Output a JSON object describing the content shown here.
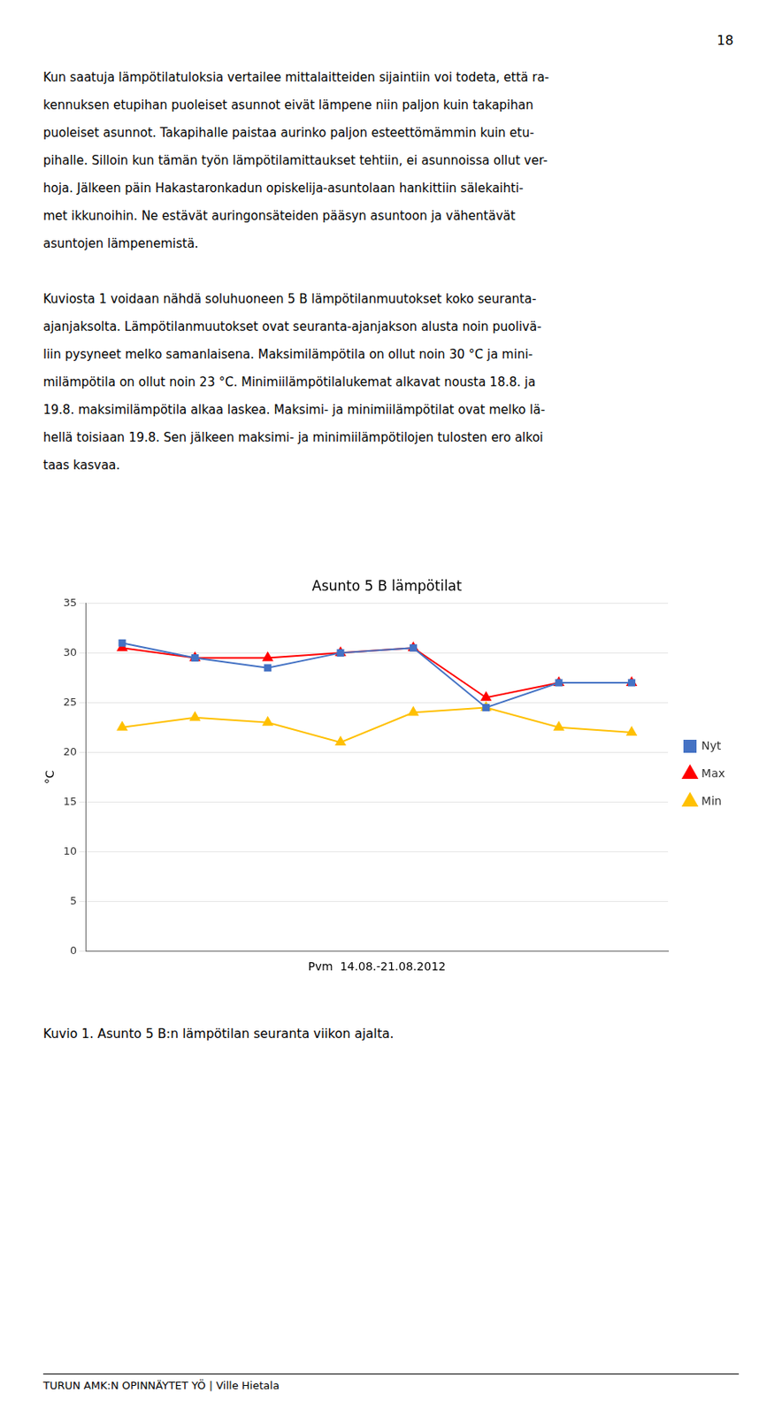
{
  "page_number": "18",
  "paragraphs": [
    [
      "Kun saatuja lämpötilatuloksia vertailee mittalaitteiden sijaintiin voi todeta, että ra-",
      "kennuksen etupihan puoleiset asunnot eivät lämpene niin paljon kuin takapihan",
      "puoleiset asunnot. Takapihalle paistaa aurinko paljon esteettömämmin kuin etu-",
      "pihalle. Silloin kun tämän työn lämpötilamittaukset tehtiin, ei asunnoissa ollut ver-",
      "hoja. Jälkeen päin Hakastaronkadun opiskelija-asuntolaan hankittiin sälekaihti-",
      "met ikkunoihin. Ne estävät auringonsäteiden pääsyn asuntoon ja vähentävät",
      "asuntojen lämpenemistä."
    ],
    [
      "Kuviosta 1 voidaan nähdä soluhuoneen 5 B lämpötilanmuutokset koko seuranta-",
      "ajanjaksolta. Lämpötilanmuutokset ovat seuranta-ajanjakson alusta noin puolivä-",
      "liin pysyneet melko samanlaisena. Maksimilämpötila on ollut noin 30 °C ja mini-",
      "milämpötila on ollut noin 23 °C. Minimiilämpötilalukemat alkavat nousta 18.8. ja",
      "19.8. maksimilämpötila alkaa laskea. Maksimi- ja minimiilämpötilat ovat melko lä-",
      "hellä toisiaan 19.8. Sen jälkeen maksimi- ja minimiilämpötilojen tulosten ero alkoi",
      "taas kasvaa."
    ]
  ],
  "caption": "Kuvio 1. Asunto 5 B:n lämpötilan seuranta viikon ajalta.",
  "footer": "TURUN AMK:N OPINNÄYTET YÖ | Ville Hietala",
  "chart_data": {
    "type": "line",
    "title": "Asunto 5 B lämpötilat",
    "xlabel": "Pvm  14.08.-21.08.2012",
    "ylabel": "°C",
    "x": [
      1,
      2,
      3,
      4,
      5,
      6,
      7,
      8
    ],
    "xlim": [
      0.5,
      8.5
    ],
    "ylim": [
      0,
      35
    ],
    "yticks": [
      0,
      5,
      10,
      15,
      20,
      25,
      30,
      35
    ],
    "grid": true,
    "legend": "right",
    "tick_labels": "y",
    "series": [
      {
        "name": "Nyt",
        "color": "#4472C4",
        "marker": "square",
        "values": [
          31.0,
          29.5,
          28.5,
          30.0,
          30.5,
          24.5,
          27.0,
          27.0
        ]
      },
      {
        "name": "Max",
        "color": "#FF0000",
        "marker": "triangle",
        "values": [
          30.5,
          29.5,
          29.5,
          30.0,
          30.5,
          25.5,
          27.0,
          27.0
        ]
      },
      {
        "name": "Min",
        "color": "#FFC000",
        "marker": "triangle",
        "values": [
          22.5,
          23.5,
          23.0,
          21.0,
          24.0,
          24.5,
          22.5,
          22.0
        ]
      }
    ]
  }
}
